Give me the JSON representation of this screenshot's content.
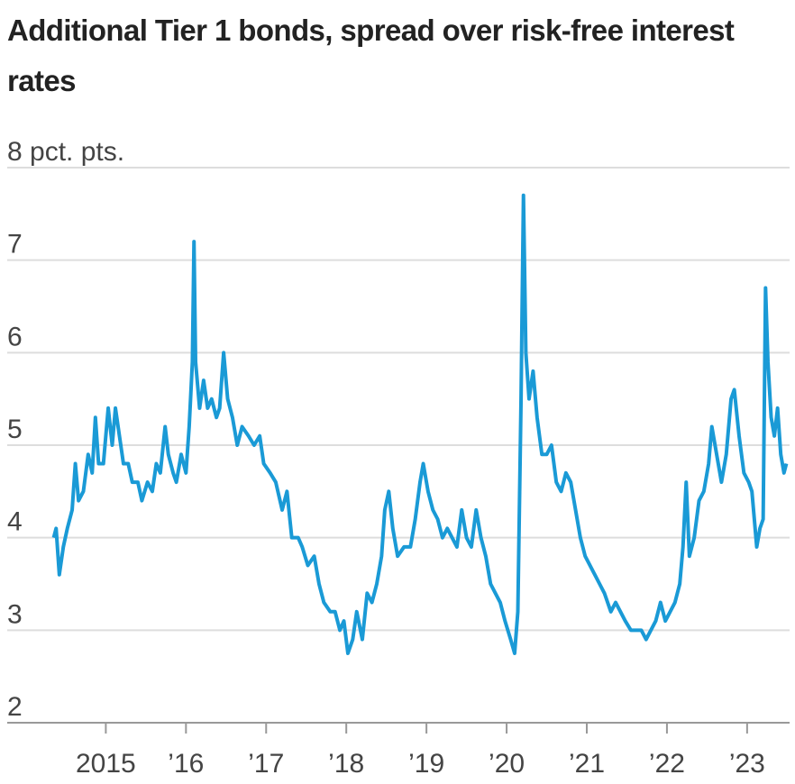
{
  "chart_data": {
    "type": "line",
    "title": "Additional Tier 1 bonds, spread over risk-free interest rates",
    "xlim": [
      2013.77,
      2023.53
    ],
    "xticks": [
      2015,
      {
        "value": 2016,
        "label": "’16"
      },
      {
        "value": 2017,
        "label": "’17"
      },
      {
        "value": 2018,
        "label": "’18"
      },
      {
        "value": 2019,
        "label": "’19"
      },
      {
        "value": 2020,
        "label": "’20"
      },
      {
        "value": 2021,
        "label": "’21"
      },
      {
        "value": 2022,
        "label": "’22"
      },
      {
        "value": 2023,
        "label": "’23"
      }
    ],
    "ylim": [
      2,
      8
    ],
    "yticks": [
      2,
      3,
      4,
      5,
      6,
      7,
      {
        "value": 8,
        "label": "8 pct. pts."
      }
    ],
    "grid": true,
    "color": "#1a9ad6",
    "x": [
      2014.35,
      2014.38,
      2014.42,
      2014.47,
      2014.52,
      2014.58,
      2014.62,
      2014.66,
      2014.72,
      2014.78,
      2014.83,
      2014.87,
      2014.91,
      2014.97,
      2015.03,
      2015.08,
      2015.12,
      2015.17,
      2015.22,
      2015.28,
      2015.33,
      2015.4,
      2015.45,
      2015.52,
      2015.58,
      2015.63,
      2015.68,
      2015.74,
      2015.78,
      2015.84,
      2015.88,
      2015.94,
      2016.0,
      2016.04,
      2016.08,
      2016.1,
      2016.12,
      2016.17,
      2016.22,
      2016.27,
      2016.32,
      2016.38,
      2016.42,
      2016.47,
      2016.52,
      2016.58,
      2016.64,
      2016.7,
      2016.78,
      2016.85,
      2016.92,
      2016.97,
      2017.05,
      2017.12,
      2017.2,
      2017.26,
      2017.32,
      2017.4,
      2017.45,
      2017.52,
      2017.6,
      2017.66,
      2017.72,
      2017.8,
      2017.86,
      2017.92,
      2017.97,
      2018.02,
      2018.08,
      2018.13,
      2018.2,
      2018.26,
      2018.32,
      2018.38,
      2018.44,
      2018.48,
      2018.53,
      2018.58,
      2018.64,
      2018.72,
      2018.8,
      2018.86,
      2018.92,
      2018.96,
      2019.02,
      2019.08,
      2019.14,
      2019.2,
      2019.26,
      2019.32,
      2019.38,
      2019.44,
      2019.5,
      2019.56,
      2019.62,
      2019.68,
      2019.74,
      2019.8,
      2019.86,
      2019.92,
      2019.98,
      2020.05,
      2020.1,
      2020.14,
      2020.18,
      2020.21,
      2020.24,
      2020.28,
      2020.33,
      2020.38,
      2020.44,
      2020.5,
      2020.56,
      2020.62,
      2020.68,
      2020.74,
      2020.8,
      2020.86,
      2020.92,
      2020.98,
      2021.04,
      2021.1,
      2021.16,
      2021.22,
      2021.3,
      2021.36,
      2021.42,
      2021.48,
      2021.55,
      2021.62,
      2021.68,
      2021.74,
      2021.8,
      2021.86,
      2021.92,
      2021.98,
      2022.04,
      2022.1,
      2022.16,
      2022.2,
      2022.24,
      2022.28,
      2022.34,
      2022.4,
      2022.46,
      2022.52,
      2022.56,
      2022.62,
      2022.68,
      2022.74,
      2022.8,
      2022.84,
      2022.9,
      2022.96,
      2023.02,
      2023.06,
      2023.12,
      2023.16,
      2023.2,
      2023.23,
      2023.26,
      2023.3,
      2023.34,
      2023.38,
      2023.42,
      2023.46,
      2023.49
    ],
    "values": [
      4.0,
      4.1,
      3.6,
      3.9,
      4.1,
      4.3,
      4.8,
      4.4,
      4.5,
      4.9,
      4.7,
      5.3,
      4.8,
      4.8,
      5.4,
      5.0,
      5.4,
      5.1,
      4.8,
      4.8,
      4.6,
      4.6,
      4.4,
      4.6,
      4.5,
      4.8,
      4.7,
      5.2,
      4.9,
      4.7,
      4.6,
      4.9,
      4.7,
      5.2,
      5.9,
      7.2,
      5.9,
      5.4,
      5.7,
      5.4,
      5.5,
      5.3,
      5.4,
      6.0,
      5.5,
      5.3,
      5.0,
      5.2,
      5.1,
      5.0,
      5.1,
      4.8,
      4.7,
      4.6,
      4.3,
      4.5,
      4.0,
      4.0,
      3.9,
      3.7,
      3.8,
      3.5,
      3.3,
      3.2,
      3.2,
      3.0,
      3.1,
      2.75,
      2.9,
      3.2,
      2.9,
      3.4,
      3.3,
      3.5,
      3.8,
      4.3,
      4.5,
      4.1,
      3.8,
      3.9,
      3.9,
      4.2,
      4.6,
      4.8,
      4.5,
      4.3,
      4.2,
      4.0,
      4.1,
      4.0,
      3.9,
      4.3,
      4.0,
      3.9,
      4.3,
      4.0,
      3.8,
      3.5,
      3.4,
      3.3,
      3.1,
      2.9,
      2.75,
      3.2,
      5.5,
      7.7,
      6.0,
      5.5,
      5.8,
      5.3,
      4.9,
      4.9,
      5.0,
      4.6,
      4.5,
      4.7,
      4.6,
      4.3,
      4.0,
      3.8,
      3.7,
      3.6,
      3.5,
      3.4,
      3.2,
      3.3,
      3.2,
      3.1,
      3.0,
      3.0,
      3.0,
      2.9,
      3.0,
      3.1,
      3.3,
      3.1,
      3.2,
      3.3,
      3.5,
      3.9,
      4.6,
      3.8,
      4.0,
      4.4,
      4.5,
      4.8,
      5.2,
      4.9,
      4.6,
      4.9,
      5.5,
      5.6,
      5.1,
      4.7,
      4.6,
      4.5,
      3.9,
      4.1,
      4.2,
      6.7,
      5.9,
      5.3,
      5.1,
      5.4,
      4.9,
      4.7,
      4.8
    ]
  }
}
